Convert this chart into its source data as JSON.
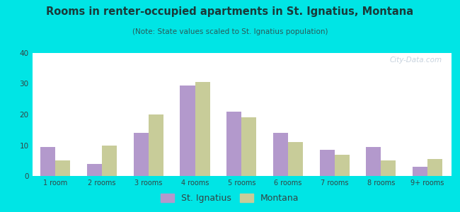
{
  "title": "Rooms in renter-occupied apartments in St. Ignatius, Montana",
  "subtitle": "(Note: State values scaled to St. Ignatius population)",
  "categories": [
    "1 room",
    "2 rooms",
    "3 rooms",
    "4 rooms",
    "5 rooms",
    "6 rooms",
    "7 rooms",
    "8 rooms",
    "9+ rooms"
  ],
  "st_ignatius": [
    9.5,
    4.0,
    14.0,
    29.5,
    21.0,
    14.0,
    8.5,
    9.5,
    3.0
  ],
  "montana": [
    5.0,
    10.0,
    20.0,
    30.5,
    19.0,
    11.0,
    7.0,
    5.0,
    5.5
  ],
  "bar_color_si": "#b399cc",
  "bar_color_mt": "#c8cc99",
  "bg_color": "#00e5e5",
  "ylim": [
    0,
    40
  ],
  "yticks": [
    0,
    10,
    20,
    30,
    40
  ],
  "legend_si": "St. Ignatius",
  "legend_mt": "Montana",
  "title_color": "#1a3a3a",
  "subtitle_color": "#2a5a5a",
  "watermark": "City-Data.com"
}
